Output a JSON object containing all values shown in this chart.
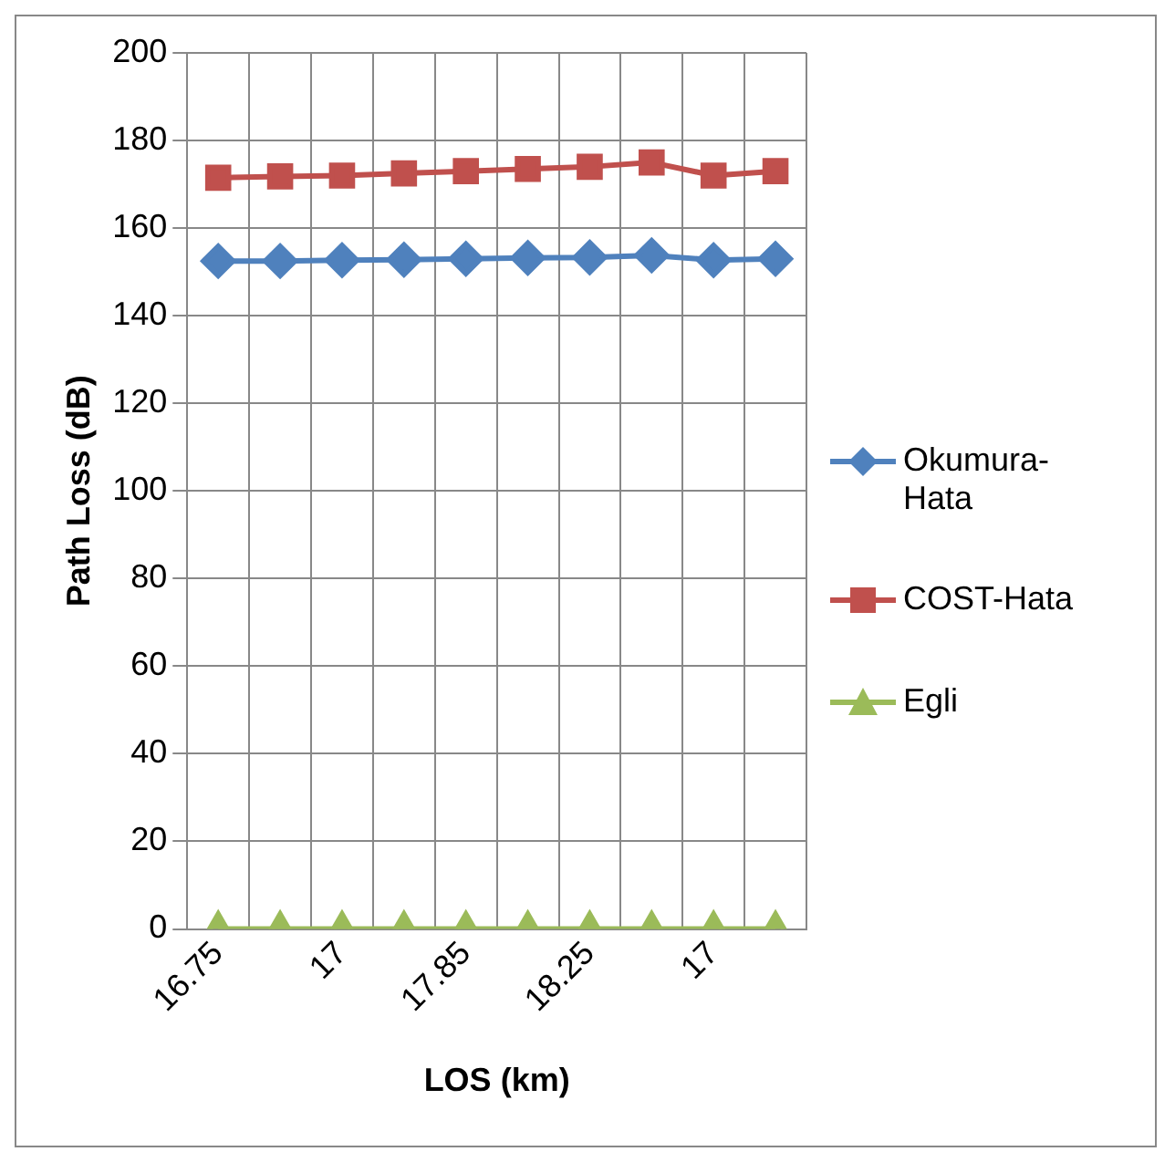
{
  "chart_data": {
    "type": "line",
    "xlabel": "LOS (km)",
    "ylabel": "Path Loss (dB)",
    "categories": [
      "16.75",
      null,
      "17",
      null,
      "17.85",
      null,
      "18.25",
      null,
      "17",
      null
    ],
    "series": [
      {
        "name": "Okumura-Hata",
        "color": "#4f81bd",
        "marker": "diamond",
        "values": [
          152.5,
          152.5,
          152.7,
          152.8,
          153,
          153.2,
          153.3,
          153.8,
          152.7,
          153
        ]
      },
      {
        "name": "COST-Hata",
        "color": "#c0504d",
        "marker": "square",
        "values": [
          171.5,
          171.8,
          172,
          172.5,
          173,
          173.5,
          174,
          175,
          172,
          173
        ]
      },
      {
        "name": "Egli",
        "color": "#9bbb59",
        "marker": "triangle",
        "values": [
          0,
          0,
          0,
          0,
          0,
          0,
          0,
          0,
          0,
          0
        ]
      }
    ],
    "ylim": [
      0,
      200
    ],
    "yticks": [
      0,
      20,
      40,
      60,
      80,
      100,
      120,
      140,
      160,
      180,
      200
    ],
    "grid": true,
    "legend": "right"
  }
}
